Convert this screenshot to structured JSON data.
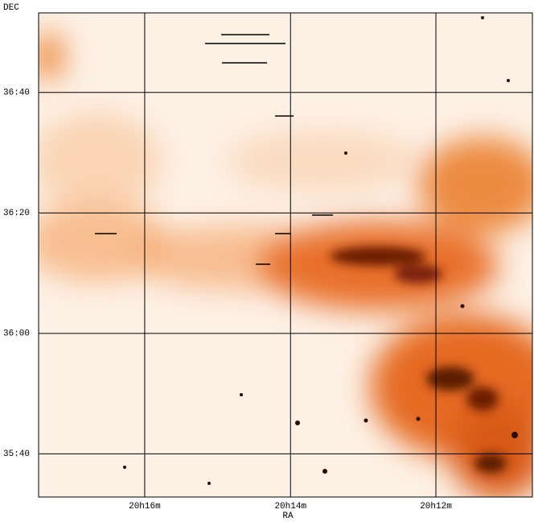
{
  "chart_data": {
    "type": "image-grid",
    "xlabel": "RA",
    "ylabel": "DEC",
    "xlim": [
      20.291,
      20.1779
    ],
    "ylim": [
      35.547,
      36.887
    ],
    "xticks": [
      {
        "value": 20.2667,
        "label": "20h16m"
      },
      {
        "value": 20.2333,
        "label": "20h14m"
      },
      {
        "value": 20.2,
        "label": "20h12m"
      }
    ],
    "yticks": [
      {
        "value": 36.6667,
        "label": "36:40"
      },
      {
        "value": 36.3333,
        "label": "36:20"
      },
      {
        "value": 36.0,
        "label": "36:00"
      },
      {
        "value": 35.6667,
        "label": "35:40"
      }
    ],
    "grid": true
  }
}
